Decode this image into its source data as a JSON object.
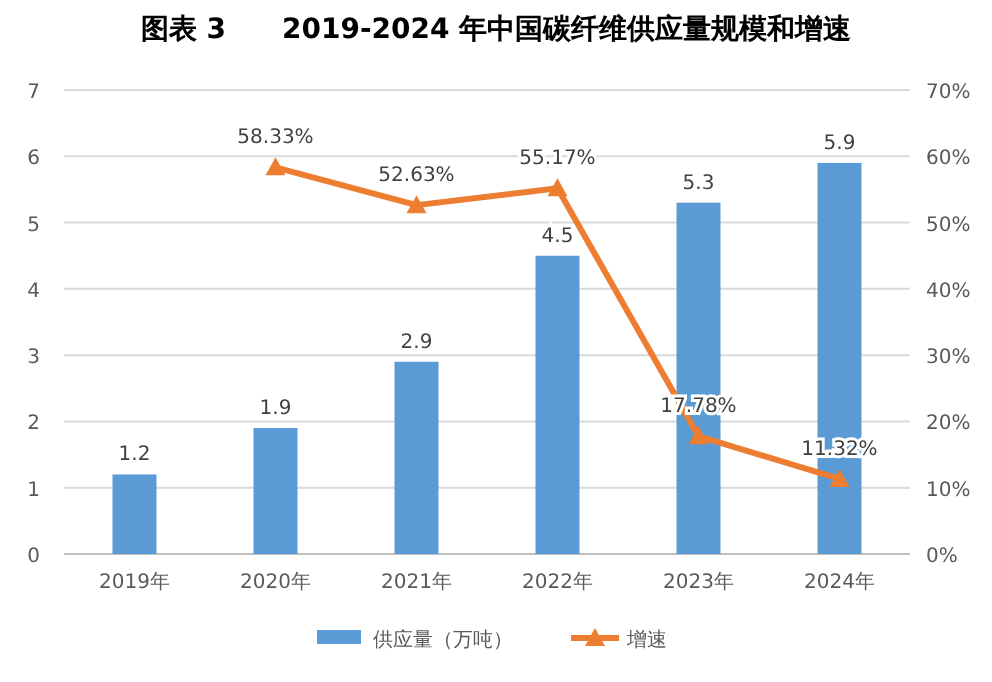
{
  "chart_data": {
    "type": "bar",
    "title": "图表 3　　2019-2024 年中国碳纤维供应量规模和增速",
    "categories": [
      "2019年",
      "2020年",
      "2021年",
      "2022年",
      "2023年",
      "2024年"
    ],
    "series": [
      {
        "name": "供应量（万吨）",
        "color": "#5b9bd5",
        "values": [
          1.2,
          1.9,
          2.9,
          4.5,
          5.3,
          5.9
        ],
        "value_labels": [
          "1.2",
          "1.9",
          "2.9",
          "4.5",
          "5.3",
          "5.9"
        ]
      },
      {
        "name": "增速",
        "type": "line",
        "axis": "y2",
        "color": "#ed7d31",
        "marker": "triangle",
        "values": [
          null,
          58.33,
          52.63,
          55.17,
          17.78,
          11.32
        ],
        "value_labels": [
          null,
          "58.33%",
          "52.63%",
          "55.17%",
          "17.78%",
          "11.32%"
        ]
      }
    ],
    "ylim": [
      0,
      7
    ],
    "yticks": [
      0,
      1,
      2,
      3,
      4,
      5,
      6,
      7
    ],
    "y2lim": [
      0,
      70
    ],
    "y2ticks": [
      {
        "value": 0,
        "label": "0%"
      },
      {
        "value": 10,
        "label": "10%"
      },
      {
        "value": 20,
        "label": "20%"
      },
      {
        "value": 30,
        "label": "30%"
      },
      {
        "value": 40,
        "label": "40%"
      },
      {
        "value": 50,
        "label": "50%"
      },
      {
        "value": 60,
        "label": "60%"
      },
      {
        "value": 70,
        "label": "70%"
      }
    ],
    "grid": "y",
    "legend": "bottom"
  }
}
